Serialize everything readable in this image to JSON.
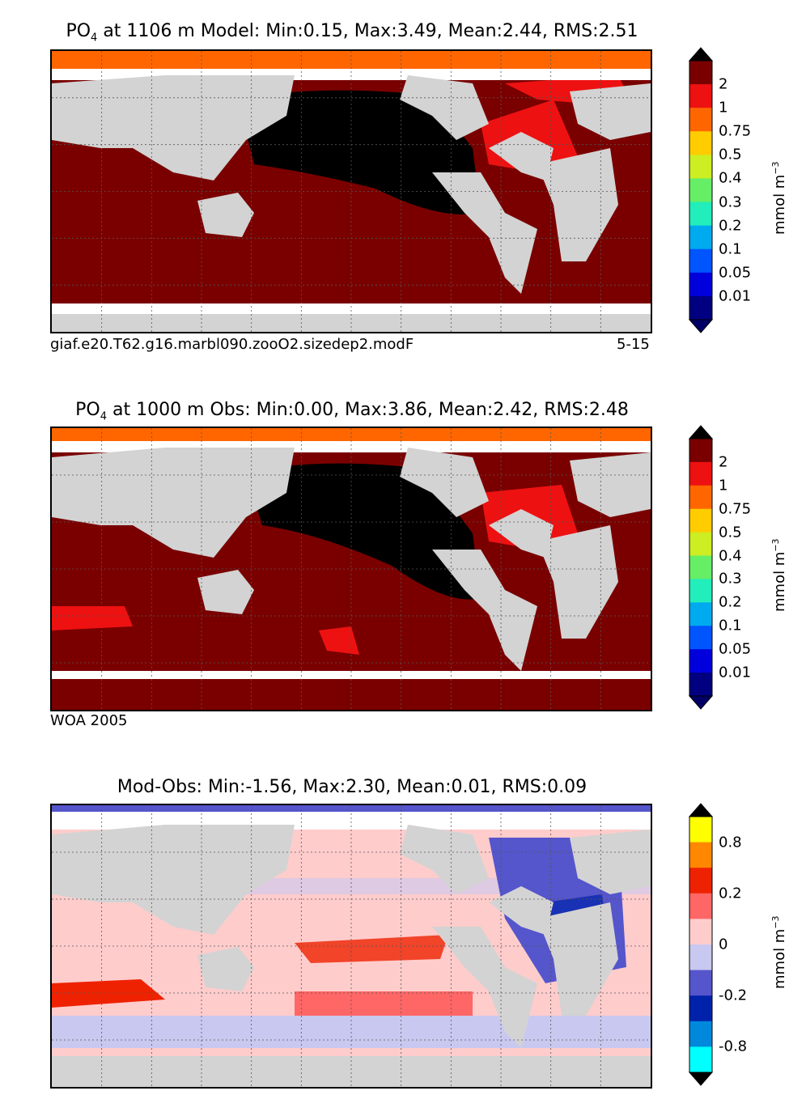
{
  "chart_data": [
    {
      "type": "heatmap",
      "title_prefix": "PO",
      "title_sub": "4",
      "title_rest": "  at 1106 m Model: Min:0.15, Max:3.49, Mean:2.44, RMS:2.51",
      "stats": {
        "min": 0.15,
        "max": 3.49,
        "mean": 2.44,
        "rms": 2.51
      },
      "footer_left": "giaf.e20.T62.g16.marbl090.zooO2.sizedep2.modF",
      "footer_right": "5-15",
      "colorbar": {
        "unit_main": "mmol m",
        "unit_exp": "−3",
        "ticks": [
          "2",
          "1",
          "0.75",
          "0.5",
          "0.4",
          "0.3",
          "0.2",
          "0.1",
          "0.05",
          "0.01"
        ],
        "colors": [
          "#7a0000",
          "#ee1111",
          "#ff6600",
          "#ffcc00",
          "#ccee22",
          "#66ee66",
          "#22eebb",
          "#00aaee",
          "#0055ff",
          "#0000dd",
          "#000080"
        ],
        "over_color": "#000000",
        "under_color": "#000066"
      }
    },
    {
      "type": "heatmap",
      "title_prefix": "PO",
      "title_sub": "4",
      "title_rest": "  at 1000 m Obs: Min:0.00, Max:3.86, Mean:2.42, RMS:2.48",
      "stats": {
        "min": 0.0,
        "max": 3.86,
        "mean": 2.42,
        "rms": 2.48
      },
      "footer_left": "WOA 2005",
      "footer_right": "",
      "colorbar": {
        "unit_main": "mmol m",
        "unit_exp": "−3",
        "ticks": [
          "2",
          "1",
          "0.75",
          "0.5",
          "0.4",
          "0.3",
          "0.2",
          "0.1",
          "0.05",
          "0.01"
        ],
        "colors": [
          "#7a0000",
          "#ee1111",
          "#ff6600",
          "#ffcc00",
          "#ccee22",
          "#66ee66",
          "#22eebb",
          "#00aaee",
          "#0055ff",
          "#0000dd",
          "#000080"
        ],
        "over_color": "#000000",
        "under_color": "#000066"
      }
    },
    {
      "type": "heatmap",
      "title_prefix": "",
      "title_sub": "",
      "title_rest": "Mod-Obs: Min:-1.56, Max:2.30, Mean:0.01, RMS:0.09",
      "stats": {
        "min": -1.56,
        "max": 2.3,
        "mean": 0.01,
        "rms": 0.09
      },
      "footer_left": "",
      "footer_right": "",
      "colorbar": {
        "unit_main": "mmol m",
        "unit_exp": "−3",
        "ticks": [
          "0.8",
          "0.2",
          "0",
          "-0.2",
          "-0.8"
        ],
        "colors": [
          "#ffff00",
          "#ff8800",
          "#ee2200",
          "#ff6666",
          "#ffcccc",
          "#c8c8f0",
          "#5555cc",
          "#0022aa",
          "#0088dd",
          "#00ffff"
        ],
        "over_color": "#000000",
        "under_color": "#000000"
      }
    }
  ]
}
